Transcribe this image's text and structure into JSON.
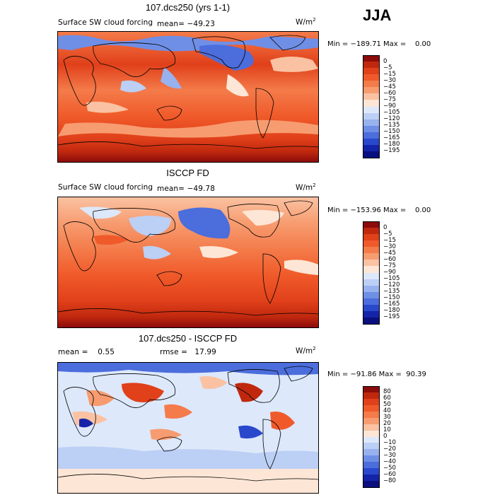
{
  "season": "JJA",
  "panels": [
    {
      "title": "107.dcs250 (yrs 1-1)",
      "subtitle_left": "Surface SW cloud forcing",
      "subtitle_mean": "mean= −49.23",
      "unit": "W/m",
      "unit_exp": "2",
      "minmax": "Min = −189.71 Max =    0.00",
      "colorbar": {
        "labels": [
          "0",
          "−5",
          "−15",
          "−30",
          "−45",
          "−60",
          "−75",
          "−90",
          "−105",
          "−120",
          "−135",
          "−150",
          "−165",
          "−180",
          "−195"
        ],
        "colors": [
          "#8c0b0b",
          "#c0280e",
          "#e0401a",
          "#f05a2a",
          "#f47b4a",
          "#f79c70",
          "#fac2a2",
          "#fde6d6",
          "#dde8fb",
          "#bccff5",
          "#97b2ee",
          "#6f8fe6",
          "#4c6ddc",
          "#2a48cc",
          "#1424a8",
          "#0a0f80"
        ]
      }
    },
    {
      "title": "ISCCP FD",
      "subtitle_left": "Surface SW cloud forcing",
      "subtitle_mean": "mean= −49.78",
      "unit": "W/m",
      "unit_exp": "2",
      "minmax": "Min = −153.96 Max =    0.00",
      "colorbar": {
        "labels": [
          "0",
          "−5",
          "−15",
          "−30",
          "−45",
          "−60",
          "−75",
          "−90",
          "−105",
          "−120",
          "−135",
          "−150",
          "−165",
          "−180",
          "−195"
        ],
        "colors": [
          "#8c0b0b",
          "#c0280e",
          "#e0401a",
          "#f05a2a",
          "#f47b4a",
          "#f79c70",
          "#fac2a2",
          "#fde6d6",
          "#dde8fb",
          "#bccff5",
          "#97b2ee",
          "#6f8fe6",
          "#4c6ddc",
          "#2a48cc",
          "#1424a8",
          "#0a0f80"
        ]
      }
    },
    {
      "title": "107.dcs250 - ISCCP FD",
      "subtitle_left": "mean =    0.55",
      "subtitle_mean": "rmse =   17.99",
      "unit": "W/m",
      "unit_exp": "2",
      "minmax": "Min = −91.86 Max =  90.39",
      "colorbar": {
        "labels": [
          "80",
          "60",
          "50",
          "40",
          "30",
          "20",
          "10",
          "0",
          "−10",
          "−20",
          "−30",
          "−40",
          "−50",
          "−60",
          "−80"
        ],
        "colors": [
          "#8c0b0b",
          "#c0280e",
          "#e0401a",
          "#f05a2a",
          "#f47b4a",
          "#f79c70",
          "#fac2a2",
          "#fde6d6",
          "#dde8fb",
          "#bccff5",
          "#97b2ee",
          "#6f8fe6",
          "#4c6ddc",
          "#2a48cc",
          "#1424a8",
          "#0a0f80"
        ]
      }
    }
  ],
  "chart_data": {
    "type": "heatmap",
    "season": "JJA",
    "maps": [
      {
        "title": "107.dcs250 (yrs 1-1)",
        "field": "Surface SW cloud forcing",
        "unit": "W/m2",
        "mean": -49.23,
        "min": -189.71,
        "max": 0.0,
        "levels": [
          0,
          -5,
          -15,
          -30,
          -45,
          -60,
          -75,
          -90,
          -105,
          -120,
          -135,
          -150,
          -165,
          -180,
          -195
        ]
      },
      {
        "title": "ISCCP FD",
        "field": "Surface SW cloud forcing",
        "unit": "W/m2",
        "mean": -49.78,
        "min": -153.96,
        "max": 0.0,
        "levels": [
          0,
          -5,
          -15,
          -30,
          -45,
          -60,
          -75,
          -90,
          -105,
          -120,
          -135,
          -150,
          -165,
          -180,
          -195
        ]
      },
      {
        "title": "107.dcs250 - ISCCP FD",
        "unit": "W/m2",
        "mean": 0.55,
        "rmse": 17.99,
        "min": -91.86,
        "max": 90.39,
        "levels": [
          80,
          60,
          50,
          40,
          30,
          20,
          10,
          0,
          -10,
          -20,
          -30,
          -40,
          -50,
          -60,
          -80
        ]
      }
    ]
  }
}
